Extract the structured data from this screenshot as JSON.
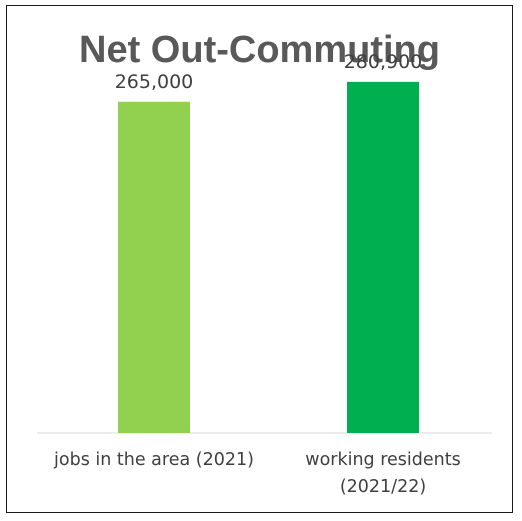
{
  "chart_data": {
    "type": "bar",
    "title": "Net Out-Commuting",
    "categories": [
      [
        "jobs in the area (2021)"
      ],
      [
        "working residents",
        "(2021/22)"
      ]
    ],
    "series": [
      {
        "values": [
          265000,
          280900
        ],
        "labels": [
          "265,000",
          "280,900"
        ],
        "colors": [
          "#92d050",
          "#00b050"
        ]
      }
    ],
    "ylim": [
      0,
      300000
    ],
    "grid": false,
    "legend": "none",
    "xlabel": "",
    "ylabel": ""
  }
}
